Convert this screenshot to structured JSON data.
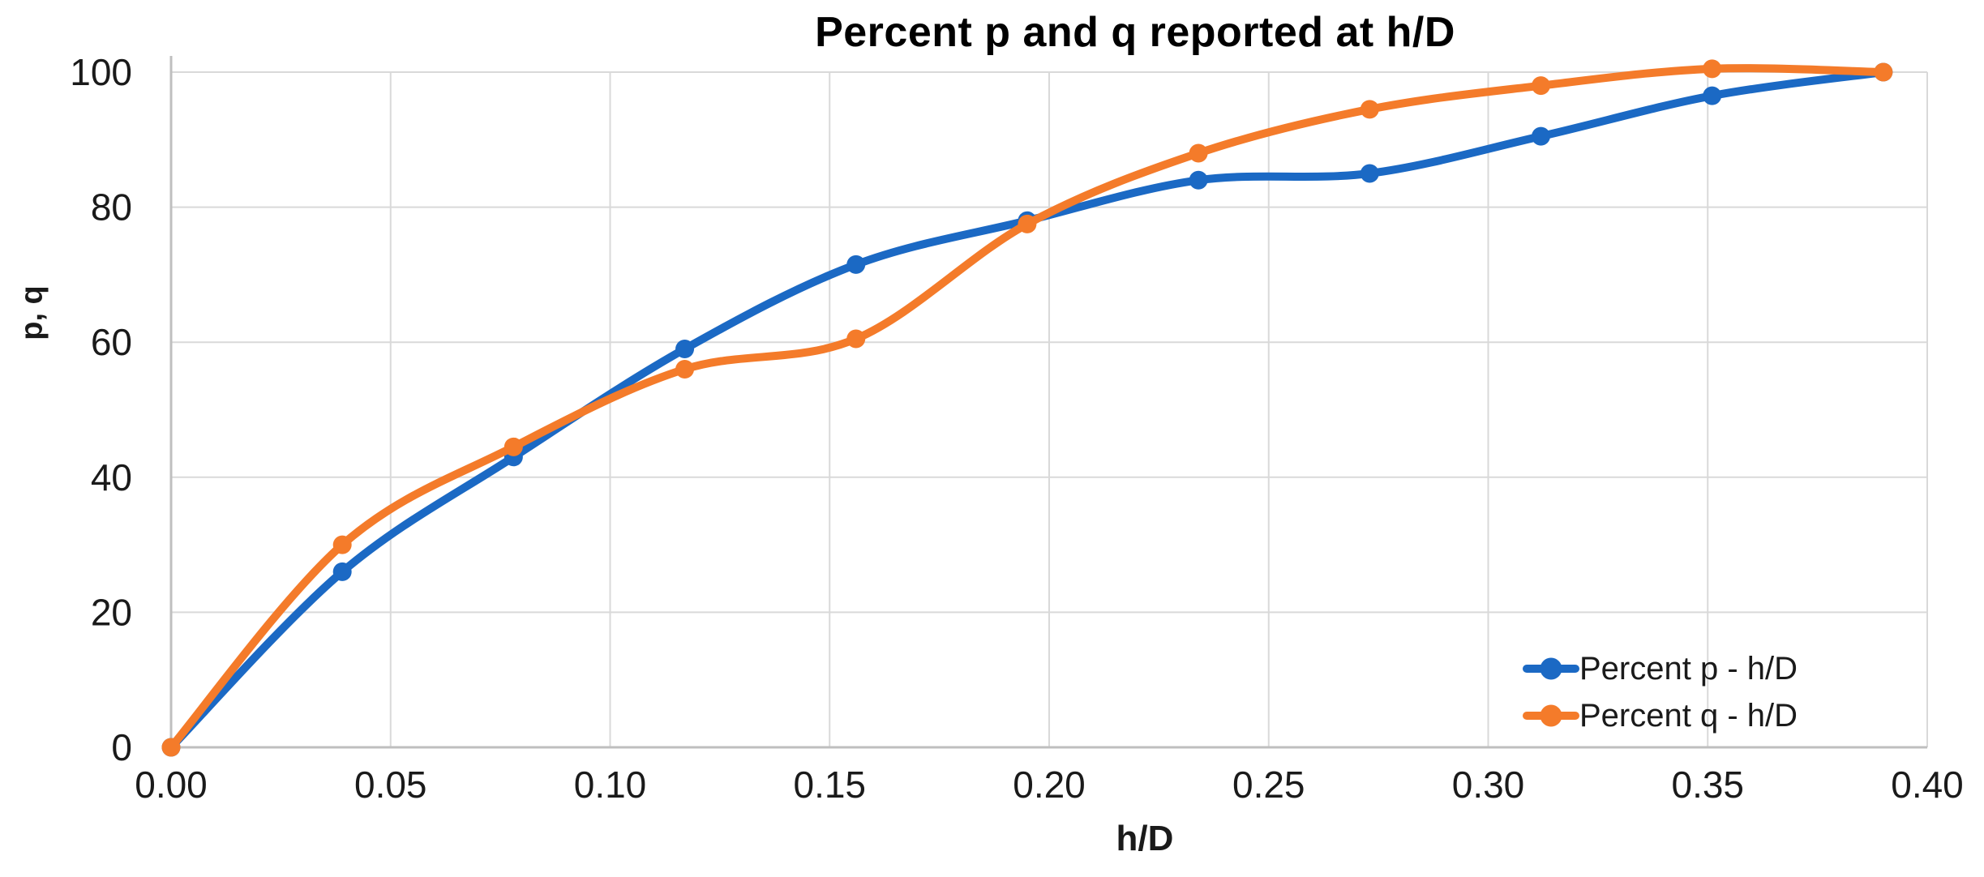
{
  "chart_data": {
    "type": "line",
    "title": "Percent p and q reported at h/D",
    "xlabel": "h/D",
    "ylabel": "p, q",
    "x": [
      0.0,
      0.039,
      0.078,
      0.117,
      0.156,
      0.195,
      0.234,
      0.273,
      0.312,
      0.351,
      0.39
    ],
    "series": [
      {
        "name": "Percent p - h/D",
        "color": "#1B69C4",
        "values": [
          0,
          26,
          43,
          59,
          71.5,
          78,
          84,
          85,
          90.5,
          96.5,
          100
        ]
      },
      {
        "name": "Percent q - h/D",
        "color": "#F47B2A",
        "values": [
          0,
          30,
          44.5,
          56,
          60.5,
          77.5,
          88,
          94.5,
          98,
          100.5,
          100
        ]
      }
    ],
    "x_ticks": [
      "0.00",
      "0.05",
      "0.10",
      "0.15",
      "0.20",
      "0.25",
      "0.30",
      "0.35",
      "0.40"
    ],
    "y_ticks": [
      "0",
      "20",
      "40",
      "60",
      "80",
      "100"
    ],
    "xlim": [
      0,
      0.4
    ],
    "ylim": [
      0,
      100
    ],
    "grid": true,
    "legend_position": "inside-bottom-right",
    "style": {
      "grid_color": "#D9D9D9",
      "axis_color": "#BFBFBF",
      "tick_color": "#1A1A1A",
      "line_width": 10,
      "marker_radius": 11.5,
      "smooth": true
    }
  }
}
